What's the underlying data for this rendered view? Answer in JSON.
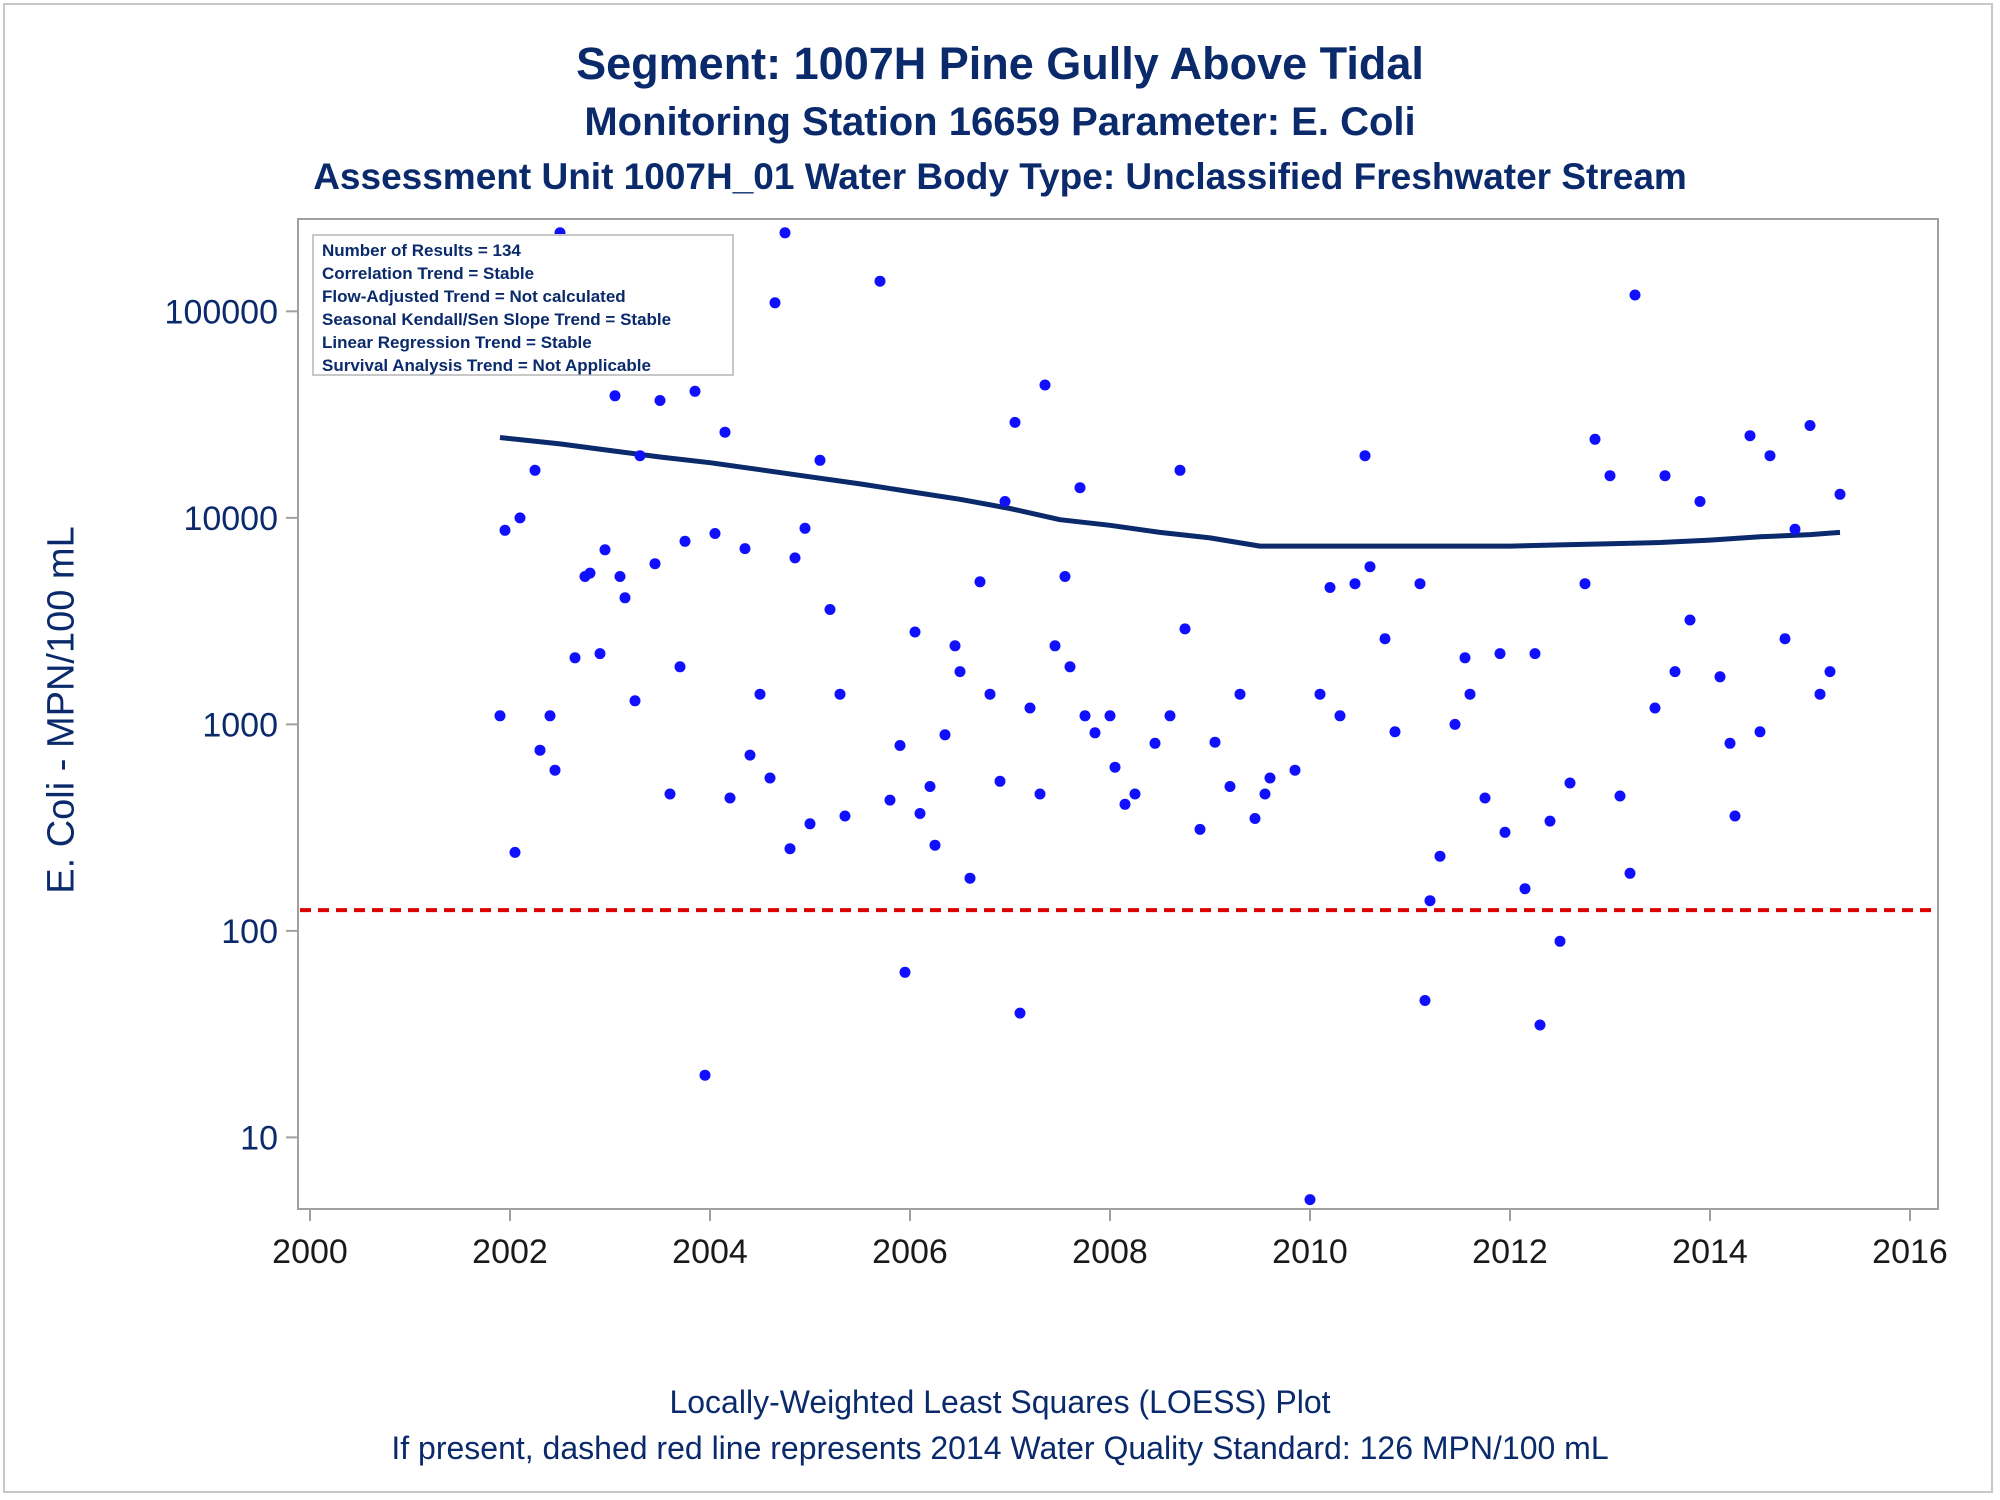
{
  "titles": {
    "line1": "Segment: 1007H  Pine Gully Above Tidal",
    "line2": "Monitoring Station 16659 Parameter: E. Coli",
    "line3": "Assessment Unit 1007H_01   Water Body Type: Unclassified Freshwater Stream"
  },
  "footnotes": {
    "line1": "Locally-Weighted Least Squares (LOESS) Plot",
    "line2": "If present, dashed red line represents 2014 Water Quality Standard: 126 MPN/100 mL"
  },
  "stats_box": [
    "Number of Results = 134",
    "Correlation Trend = Stable",
    "Flow-Adjusted Trend = Not calculated",
    "Seasonal Kendall/Sen Slope Trend = Stable",
    "Linear Regression Trend = Stable",
    "Survival Analysis Trend = Not Applicable"
  ],
  "colors": {
    "points": "#1010ff",
    "loess": "#0a2a6b",
    "standard": "#dd0000",
    "text": "#0a2a6b"
  },
  "chart_data": {
    "type": "scatter",
    "title": "Segment: 1007H  Pine Gully Above Tidal",
    "xlabel": "",
    "ylabel": "E. Coli - MPN/100 mL",
    "xlim": [
      2000,
      2016
    ],
    "ylim": [
      4.5,
      280000
    ],
    "y_scale": "log",
    "x_ticks": [
      "2000",
      "2002",
      "2004",
      "2006",
      "2008",
      "2010",
      "2012",
      "2014",
      "2016"
    ],
    "y_ticks": [
      "10",
      "100",
      "1000",
      "10000",
      "100000"
    ],
    "grid": false,
    "standard": {
      "value": 126,
      "style": "dashed"
    },
    "points": [
      [
        2001.9,
        1100
      ],
      [
        2001.95,
        8700
      ],
      [
        2002.05,
        240
      ],
      [
        2002.1,
        10000
      ],
      [
        2002.25,
        17000
      ],
      [
        2002.3,
        750
      ],
      [
        2002.4,
        1100
      ],
      [
        2002.45,
        600
      ],
      [
        2002.5,
        240000
      ],
      [
        2002.65,
        2100
      ],
      [
        2002.75,
        5200
      ],
      [
        2002.8,
        5400
      ],
      [
        2002.9,
        2200
      ],
      [
        2002.95,
        7000
      ],
      [
        2003.05,
        39000
      ],
      [
        2003.1,
        5200
      ],
      [
        2003.15,
        4100
      ],
      [
        2003.25,
        1300
      ],
      [
        2003.3,
        20000
      ],
      [
        2003.45,
        6000
      ],
      [
        2003.5,
        37000
      ],
      [
        2003.6,
        460
      ],
      [
        2003.7,
        1900
      ],
      [
        2003.75,
        7700
      ],
      [
        2003.85,
        41000
      ],
      [
        2003.95,
        20
      ],
      [
        2004.05,
        8400
      ],
      [
        2004.15,
        26000
      ],
      [
        2004.2,
        440
      ],
      [
        2004.35,
        7100
      ],
      [
        2004.4,
        710
      ],
      [
        2004.5,
        1400
      ],
      [
        2004.6,
        550
      ],
      [
        2004.65,
        110000
      ],
      [
        2004.75,
        240000
      ],
      [
        2004.8,
        250
      ],
      [
        2004.85,
        6400
      ],
      [
        2004.95,
        8900
      ],
      [
        2005.0,
        330
      ],
      [
        2005.1,
        19000
      ],
      [
        2005.2,
        3600
      ],
      [
        2005.3,
        1400
      ],
      [
        2005.35,
        360
      ],
      [
        2005.7,
        140000
      ],
      [
        2005.8,
        430
      ],
      [
        2005.9,
        790
      ],
      [
        2005.95,
        63
      ],
      [
        2006.05,
        2800
      ],
      [
        2006.1,
        370
      ],
      [
        2006.2,
        500
      ],
      [
        2006.25,
        260
      ],
      [
        2006.35,
        890
      ],
      [
        2006.45,
        2400
      ],
      [
        2006.5,
        1800
      ],
      [
        2006.6,
        180
      ],
      [
        2006.7,
        4900
      ],
      [
        2006.8,
        1400
      ],
      [
        2006.9,
        530
      ],
      [
        2006.95,
        12000
      ],
      [
        2007.05,
        29000
      ],
      [
        2007.1,
        40
      ],
      [
        2007.2,
        1200
      ],
      [
        2007.3,
        460
      ],
      [
        2007.35,
        44000
      ],
      [
        2007.45,
        2400
      ],
      [
        2007.55,
        5200
      ],
      [
        2007.6,
        1900
      ],
      [
        2007.7,
        14000
      ],
      [
        2007.75,
        1100
      ],
      [
        2007.85,
        910
      ],
      [
        2008.0,
        1100
      ],
      [
        2008.05,
        620
      ],
      [
        2008.15,
        410
      ],
      [
        2008.25,
        460
      ],
      [
        2008.45,
        810
      ],
      [
        2008.6,
        1100
      ],
      [
        2008.7,
        17000
      ],
      [
        2008.75,
        2900
      ],
      [
        2008.9,
        310
      ],
      [
        2009.05,
        820
      ],
      [
        2009.2,
        500
      ],
      [
        2009.3,
        1400
      ],
      [
        2009.45,
        350
      ],
      [
        2009.55,
        460
      ],
      [
        2009.6,
        550
      ],
      [
        2009.85,
        600
      ],
      [
        2010.0,
        5
      ],
      [
        2010.1,
        1400
      ],
      [
        2010.2,
        4600
      ],
      [
        2010.3,
        1100
      ],
      [
        2010.45,
        4800
      ],
      [
        2010.55,
        20000
      ],
      [
        2010.6,
        5800
      ],
      [
        2010.75,
        2600
      ],
      [
        2010.85,
        920
      ],
      [
        2011.1,
        4800
      ],
      [
        2011.15,
        46
      ],
      [
        2011.2,
        140
      ],
      [
        2011.3,
        230
      ],
      [
        2011.45,
        1000
      ],
      [
        2011.55,
        2100
      ],
      [
        2011.6,
        1400
      ],
      [
        2011.75,
        440
      ],
      [
        2011.9,
        2200
      ],
      [
        2011.95,
        300
      ],
      [
        2012.15,
        160
      ],
      [
        2012.25,
        2200
      ],
      [
        2012.3,
        35
      ],
      [
        2012.4,
        340
      ],
      [
        2012.5,
        89
      ],
      [
        2012.6,
        520
      ],
      [
        2012.75,
        4800
      ],
      [
        2012.85,
        24000
      ],
      [
        2013.0,
        16000
      ],
      [
        2013.1,
        450
      ],
      [
        2013.2,
        190
      ],
      [
        2013.25,
        120000
      ],
      [
        2013.45,
        1200
      ],
      [
        2013.55,
        16000
      ],
      [
        2013.65,
        1800
      ],
      [
        2013.8,
        3200
      ],
      [
        2013.9,
        12000
      ],
      [
        2014.1,
        1700
      ],
      [
        2014.2,
        810
      ],
      [
        2014.25,
        360
      ],
      [
        2014.4,
        25000
      ],
      [
        2014.5,
        920
      ],
      [
        2014.6,
        20000
      ],
      [
        2014.75,
        2600
      ],
      [
        2014.85,
        8800
      ],
      [
        2015.0,
        28000
      ],
      [
        2015.1,
        1400
      ],
      [
        2015.2,
        1800
      ],
      [
        2015.3,
        13000
      ]
    ],
    "loess": [
      [
        2001.9,
        24500
      ],
      [
        2002.5,
        22800
      ],
      [
        2003.0,
        21200
      ],
      [
        2003.5,
        19700
      ],
      [
        2004.0,
        18500
      ],
      [
        2004.5,
        17100
      ],
      [
        2005.0,
        15800
      ],
      [
        2005.5,
        14600
      ],
      [
        2006.0,
        13400
      ],
      [
        2006.5,
        12300
      ],
      [
        2007.0,
        11100
      ],
      [
        2007.5,
        9800
      ],
      [
        2008.0,
        9200
      ],
      [
        2008.5,
        8500
      ],
      [
        2009.0,
        8000
      ],
      [
        2009.5,
        7300
      ],
      [
        2010.0,
        7300
      ],
      [
        2010.5,
        7300
      ],
      [
        2011.0,
        7300
      ],
      [
        2011.5,
        7300
      ],
      [
        2012.0,
        7300
      ],
      [
        2012.5,
        7400
      ],
      [
        2013.0,
        7500
      ],
      [
        2013.5,
        7600
      ],
      [
        2014.0,
        7800
      ],
      [
        2014.5,
        8100
      ],
      [
        2015.0,
        8300
      ],
      [
        2015.3,
        8500
      ]
    ]
  }
}
